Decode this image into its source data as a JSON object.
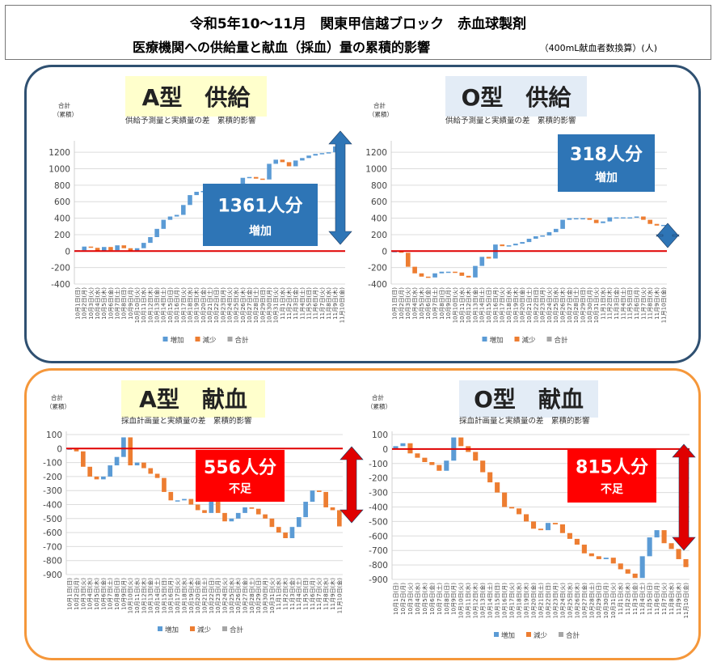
{
  "title": {
    "line1": "令和5年10～11月　関東甲信越ブロック　赤血球製剤",
    "line2": "医療機関への供給量と献血（採血）量の累積的影響",
    "unit": "（400mL献血者数換算）(人)"
  },
  "colors": {
    "increase": "#5b9bd5",
    "decrease": "#ed7d31",
    "total": "#a5a5a5",
    "zero_line": "#e00000",
    "arrow_blue": "#2e75b6",
    "arrow_red": "#e00000",
    "callout_blue": "#2e75b6",
    "callout_red": "#ff0000",
    "heading_yellow": "#ffffcc",
    "heading_blue": "#e3ecf6",
    "supply_border": "#2f5071",
    "donation_border": "#f5973a"
  },
  "dates": [
    "10月1日(日)",
    "10月2日(月)",
    "10月3日(火)",
    "10月4日(水)",
    "10月5日(木)",
    "10月6日(金)",
    "10月7日(土)",
    "10月8日(日)",
    "10月9日(月)",
    "10月10日(火)",
    "10月11日(水)",
    "10月12日(木)",
    "10月13日(金)",
    "10月14日(土)",
    "10月15日(日)",
    "10月16日(月)",
    "10月17日(火)",
    "10月18日(水)",
    "10月19日(木)",
    "10月20日(金)",
    "10月21日(土)",
    "10月22日(日)",
    "10月23日(月)",
    "10月24日(火)",
    "10月25日(水)",
    "10月26日(木)",
    "10月27日(金)",
    "10月28日(土)",
    "10月29日(日)",
    "10月30日(月)",
    "10月31日(火)",
    "11月1日(水)",
    "11月2日(木)",
    "11月3日(金)",
    "11月4日(土)",
    "11月5日(日)",
    "11月6日(月)",
    "11月7日(火)",
    "11月8日(水)",
    "11月9日(木)",
    "11月10日(金)"
  ],
  "legend": {
    "increase": "増加",
    "decrease": "減少",
    "total": "合計"
  },
  "yaxis_title": [
    "合計",
    "（累積）"
  ],
  "chart_data": [
    {
      "type": "waterfall",
      "heading": "A型　供給",
      "subtitle": "供給予測量と実績量の差　累積的影響",
      "callout": {
        "value": "1361人分",
        "label": "増加"
      },
      "ylim": [
        -400,
        1300
      ],
      "yticks": [
        -400,
        -200,
        0,
        200,
        400,
        600,
        800,
        1000,
        1200
      ],
      "cumulative": [
        10,
        55,
        40,
        0,
        50,
        10,
        70,
        35,
        0,
        35,
        100,
        170,
        270,
        380,
        420,
        440,
        560,
        680,
        720,
        730,
        740,
        750,
        760,
        790,
        800,
        890,
        900,
        880,
        870,
        1060,
        1110,
        1080,
        1030,
        1100,
        1130,
        1160,
        1180,
        1190,
        1200,
        1270,
        1361
      ]
    },
    {
      "type": "waterfall",
      "heading": "O型　供給",
      "subtitle": "供給予測量と実績量の差　累積的影響",
      "callout": {
        "value": "318人分",
        "label": "増加"
      },
      "ylim": [
        -400,
        1300
      ],
      "yticks": [
        -400,
        -200,
        0,
        200,
        400,
        600,
        800,
        1000,
        1200
      ],
      "cumulative": [
        0,
        -20,
        -190,
        -270,
        -310,
        -320,
        -270,
        -250,
        -250,
        -260,
        -300,
        -320,
        -180,
        -70,
        -90,
        80,
        60,
        70,
        90,
        110,
        150,
        180,
        190,
        230,
        270,
        380,
        400,
        400,
        400,
        380,
        340,
        360,
        410,
        410,
        410,
        410,
        420,
        380,
        330,
        310,
        318
      ]
    },
    {
      "type": "waterfall",
      "heading": "A型　献血",
      "subtitle": "採血計画量と実績量の差　累積的影響",
      "callout": {
        "value": "556人分",
        "label": "不足"
      },
      "ylim": [
        -900,
        100
      ],
      "yticks": [
        -900,
        -800,
        -700,
        -600,
        -500,
        -400,
        -300,
        -200,
        -100,
        0,
        100
      ],
      "cumulative": [
        0,
        -20,
        -130,
        -200,
        -220,
        -200,
        -120,
        -60,
        80,
        -120,
        -100,
        -140,
        -180,
        -210,
        -310,
        -370,
        -370,
        -360,
        -400,
        -440,
        -460,
        -380,
        -460,
        -520,
        -500,
        -460,
        -420,
        -430,
        -470,
        -500,
        -560,
        -600,
        -640,
        -560,
        -490,
        -380,
        -300,
        -310,
        -420,
        -440,
        -556
      ]
    },
    {
      "type": "waterfall",
      "heading": "O型　献血",
      "subtitle": "採血計画量と実績量の差　累積的影響",
      "callout": {
        "value": "815人分",
        "label": "不足"
      },
      "ylim": [
        -900,
        100
      ],
      "yticks": [
        -900,
        -800,
        -700,
        -600,
        -500,
        -400,
        -300,
        -200,
        -100,
        0,
        100
      ],
      "cumulative": [
        20,
        40,
        -30,
        -60,
        -90,
        -110,
        -150,
        -80,
        80,
        20,
        -20,
        -80,
        -160,
        -230,
        -300,
        -400,
        -410,
        -450,
        -500,
        -550,
        -560,
        -510,
        -520,
        -580,
        -620,
        -660,
        -720,
        -740,
        -760,
        -750,
        -790,
        -830,
        -860,
        -890,
        -740,
        -610,
        -560,
        -650,
        -690,
        -760,
        -815
      ]
    }
  ]
}
